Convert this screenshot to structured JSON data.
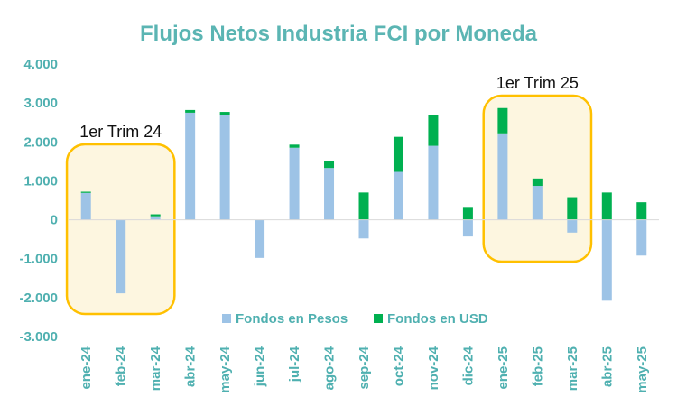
{
  "chart_data": {
    "type": "bar",
    "stacked": true,
    "title": "Flujos Netos Industria FCI por Moneda",
    "categories": [
      "ene-24",
      "feb-24",
      "mar-24",
      "abr-24",
      "may-24",
      "jun-24",
      "jul-24",
      "ago-24",
      "sep-24",
      "oct-24",
      "nov-24",
      "dic-24",
      "ene-25",
      "feb-25",
      "mar-25",
      "abr-25",
      "may-25"
    ],
    "series": [
      {
        "name": "Fondos en Pesos",
        "color": "#9dc3e6",
        "values": [
          690,
          -1890,
          90,
          2750,
          2700,
          -980,
          1850,
          1330,
          -480,
          1230,
          1900,
          -430,
          2220,
          870,
          -330,
          -2080,
          -920
        ]
      },
      {
        "name": "Fondos en USD",
        "color": "#00b050",
        "values": [
          30,
          0,
          50,
          70,
          70,
          0,
          80,
          190,
          700,
          900,
          780,
          330,
          650,
          190,
          580,
          700,
          450
        ]
      }
    ],
    "yticks": [
      "4.000",
      "3.000",
      "2.000",
      "1.000",
      "0",
      "-1.000",
      "-2.000",
      "-3.000"
    ],
    "ylim": [
      -3000,
      4000
    ],
    "grid": false,
    "legend_position": "bottom-center",
    "annotations": [
      {
        "label": "1er Trim 24",
        "from": "ene-24",
        "to": "mar-24"
      },
      {
        "label": "1er Trim 25",
        "from": "ene-25",
        "to": "mar-25"
      }
    ],
    "annotation_color": "#ffc000",
    "annotation_fill": "#fdf6e0"
  }
}
